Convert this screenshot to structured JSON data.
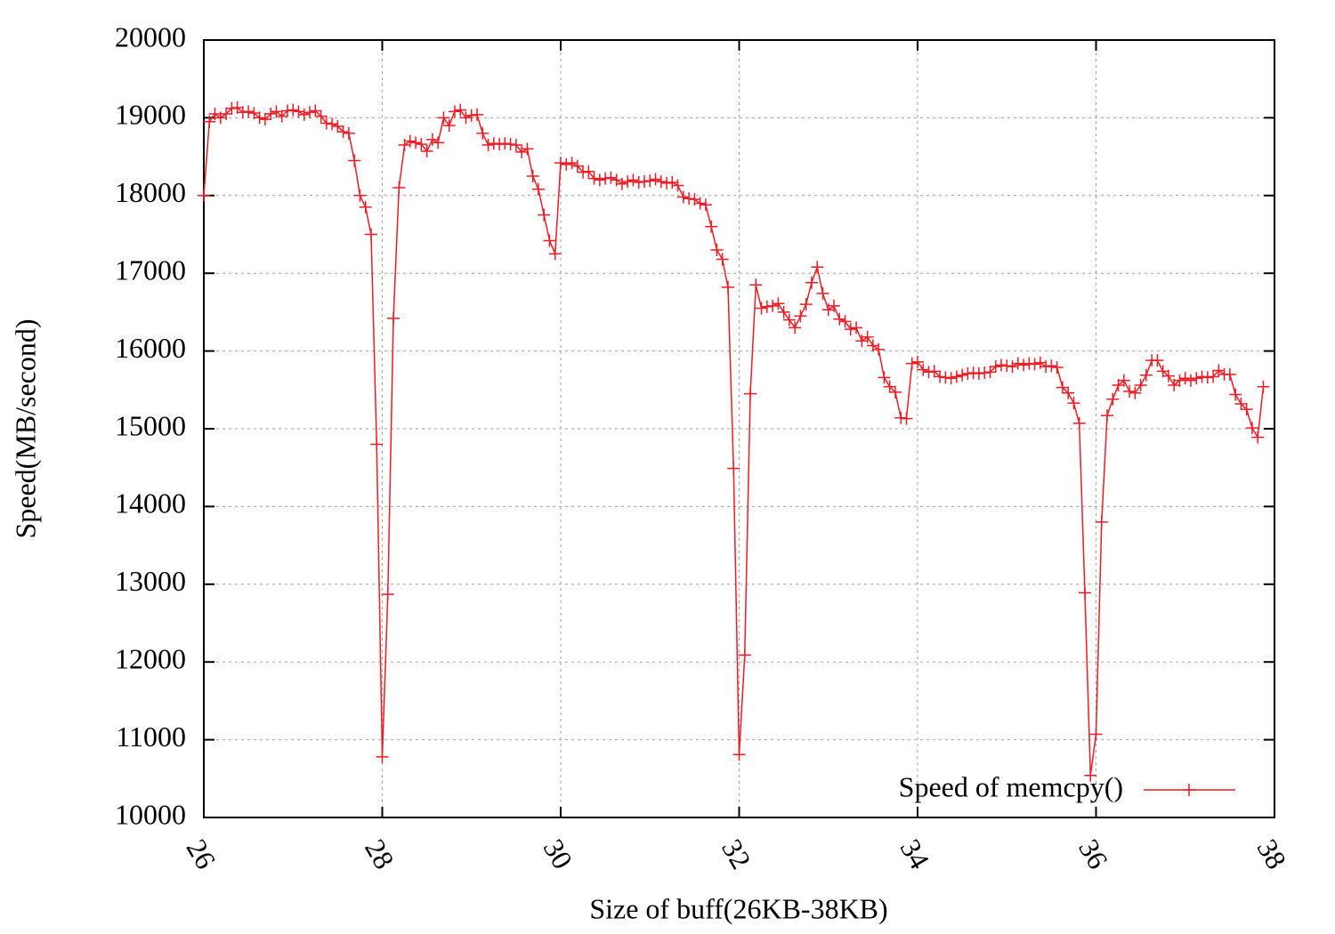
{
  "chart_data": {
    "type": "line",
    "xlabel": "Size of buff(26KB-38KB)",
    "ylabel": "Speed(MB/second)",
    "xlim": [
      26,
      38
    ],
    "xticks": [
      26,
      28,
      30,
      32,
      34,
      36,
      38
    ],
    "ylim": [
      10000,
      20000
    ],
    "yticks": [
      10000,
      11000,
      12000,
      13000,
      14000,
      15000,
      16000,
      17000,
      18000,
      19000,
      20000
    ],
    "grid": true,
    "legend": "lower right",
    "x": [
      26,
      26.0625,
      26.125,
      26.1875,
      26.25,
      26.3125,
      26.375,
      26.4375,
      26.5,
      26.5625,
      26.625,
      26.6875,
      26.75,
      26.8125,
      26.875,
      26.9375,
      27,
      27.0625,
      27.125,
      27.1875,
      27.25,
      27.3125,
      27.375,
      27.4375,
      27.5,
      27.5625,
      27.625,
      27.6875,
      27.75,
      27.8125,
      27.875,
      27.9375,
      28,
      28.0625,
      28.125,
      28.1875,
      28.25,
      28.3125,
      28.375,
      28.4375,
      28.5,
      28.5625,
      28.625,
      28.6875,
      28.75,
      28.8125,
      28.875,
      28.9375,
      29,
      29.0625,
      29.125,
      29.1875,
      29.25,
      29.3125,
      29.375,
      29.4375,
      29.5,
      29.5625,
      29.625,
      29.6875,
      29.75,
      29.8125,
      29.875,
      29.9375,
      30,
      30.0625,
      30.125,
      30.1875,
      30.25,
      30.3125,
      30.375,
      30.4375,
      30.5,
      30.5625,
      30.625,
      30.6875,
      30.75,
      30.8125,
      30.875,
      30.9375,
      31,
      31.0625,
      31.125,
      31.1875,
      31.25,
      31.3125,
      31.375,
      31.4375,
      31.5,
      31.5625,
      31.625,
      31.6875,
      31.75,
      31.8125,
      31.875,
      31.9375,
      32,
      32.0625,
      32.125,
      32.1875,
      32.25,
      32.3125,
      32.375,
      32.4375,
      32.5,
      32.5625,
      32.625,
      32.6875,
      32.75,
      32.8125,
      32.875,
      32.9375,
      33,
      33.0625,
      33.125,
      33.1875,
      33.25,
      33.3125,
      33.375,
      33.4375,
      33.5,
      33.5625,
      33.625,
      33.6875,
      33.75,
      33.8125,
      33.875,
      33.9375,
      34,
      34.0625,
      34.125,
      34.1875,
      34.25,
      34.3125,
      34.375,
      34.4375,
      34.5,
      34.5625,
      34.625,
      34.6875,
      34.75,
      34.8125,
      34.875,
      34.9375,
      35,
      35.0625,
      35.125,
      35.1875,
      35.25,
      35.3125,
      35.375,
      35.4375,
      35.5,
      35.5625,
      35.625,
      35.6875,
      35.75,
      35.8125,
      35.875,
      35.9375,
      36,
      36.0625,
      36.125,
      36.1875,
      36.25,
      36.3125,
      36.375,
      36.4375,
      36.5,
      36.5625,
      36.625,
      36.6875,
      36.75,
      36.8125,
      36.875,
      36.9375,
      37,
      37.0625,
      37.125,
      37.1875,
      37.25,
      37.3125,
      37.375,
      37.4375,
      37.5,
      37.5625,
      37.625,
      37.6875,
      37.75,
      37.8125,
      37.875
    ],
    "series": [
      {
        "name": "Speed of memcpy()",
        "color": "#ee1c25",
        "values": [
          18000,
          18950,
          19050,
          19000,
          19050,
          19120,
          19130,
          19070,
          19080,
          19060,
          19000,
          18980,
          19050,
          19080,
          19020,
          19090,
          19100,
          19080,
          19040,
          19070,
          19090,
          19020,
          18930,
          18920,
          18890,
          18820,
          18800,
          18450,
          18000,
          17850,
          17500,
          14800,
          10780,
          12870,
          16420,
          18100,
          18650,
          18700,
          18680,
          18660,
          18570,
          18720,
          18680,
          19000,
          18900,
          19080,
          19100,
          19000,
          19030,
          19040,
          18800,
          18650,
          18670,
          18660,
          18670,
          18660,
          18650,
          18560,
          18600,
          18250,
          18080,
          17750,
          17420,
          17250,
          18420,
          18400,
          18420,
          18380,
          18300,
          18310,
          18220,
          18200,
          18220,
          18230,
          18200,
          18150,
          18180,
          18200,
          18170,
          18180,
          18190,
          18210,
          18180,
          18160,
          18170,
          18130,
          17980,
          17960,
          17950,
          17900,
          17880,
          17600,
          17300,
          17180,
          16820,
          14490,
          10810,
          12090,
          15450,
          16850,
          16550,
          16570,
          16580,
          16610,
          16500,
          16400,
          16300,
          16450,
          16600,
          16880,
          17080,
          16740,
          16530,
          16580,
          16410,
          16380,
          16280,
          16300,
          16130,
          16180,
          16070,
          16020,
          15660,
          15540,
          15470,
          15140,
          15130,
          15840,
          15860,
          15760,
          15730,
          15740,
          15670,
          15660,
          15650,
          15670,
          15690,
          15710,
          15720,
          15710,
          15720,
          15730,
          15800,
          15820,
          15810,
          15800,
          15840,
          15820,
          15840,
          15830,
          15850,
          15800,
          15810,
          15790,
          15530,
          15460,
          15330,
          15070,
          12890,
          10540,
          11070,
          13800,
          15170,
          15380,
          15560,
          15620,
          15480,
          15460,
          15560,
          15690,
          15880,
          15880,
          15740,
          15680,
          15560,
          15620,
          15650,
          15620,
          15650,
          15670,
          15660,
          15670,
          15750,
          15700,
          15700,
          15440,
          15320,
          15250,
          15010,
          14890,
          15540
        ]
      }
    ]
  }
}
